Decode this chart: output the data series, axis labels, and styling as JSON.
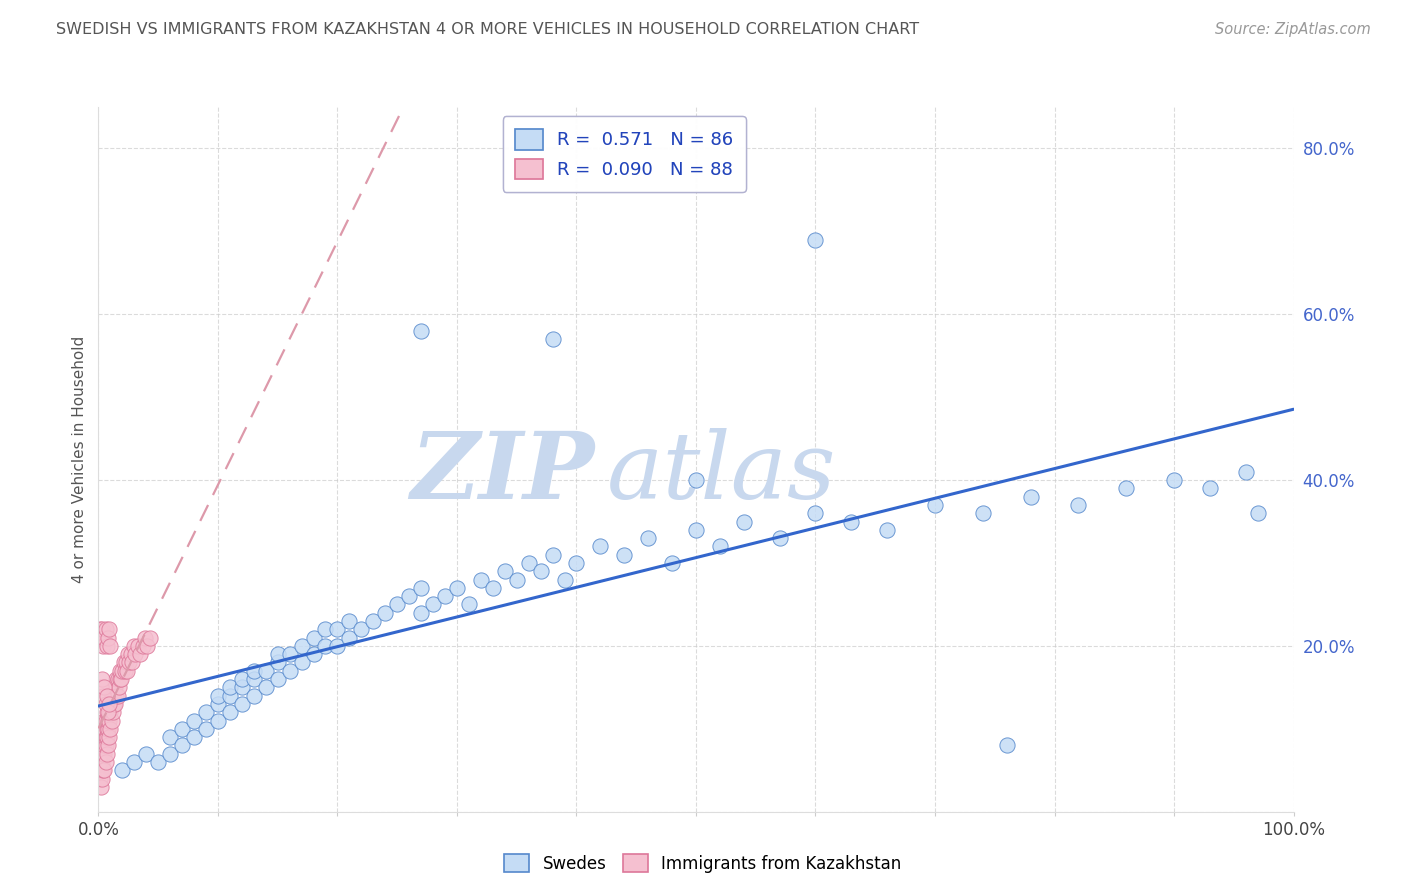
{
  "title": "SWEDISH VS IMMIGRANTS FROM KAZAKHSTAN 4 OR MORE VEHICLES IN HOUSEHOLD CORRELATION CHART",
  "source": "Source: ZipAtlas.com",
  "ylabel": "4 or more Vehicles in Household",
  "watermark_zip": "ZIP",
  "watermark_atlas": "atlas",
  "xlim": [
    0.0,
    1.0
  ],
  "ylim": [
    0.0,
    0.85
  ],
  "xticks": [
    0.0,
    0.1,
    0.2,
    0.3,
    0.4,
    0.5,
    0.6,
    0.7,
    0.8,
    0.9,
    1.0
  ],
  "yticks": [
    0.0,
    0.2,
    0.4,
    0.6,
    0.8
  ],
  "R_swedes": 0.571,
  "N_swedes": 86,
  "R_kaz": 0.09,
  "N_kaz": 88,
  "blue_fill": "#C5DCF5",
  "blue_edge": "#5588CC",
  "pink_fill": "#F5C0D0",
  "pink_edge": "#DD7799",
  "blue_line_color": "#3366CC",
  "pink_line_color": "#DD99AA",
  "title_color": "#555555",
  "source_color": "#999999",
  "legend_value_color": "#2244BB",
  "ylabel_color": "#555555",
  "yticklabel_color": "#4466CC",
  "xticklabel_color": "#444444",
  "background": "#FFFFFF",
  "grid_color": "#CCCCCC",
  "legend_edge_color": "#AAAACC",
  "swedes_x": [
    0.02,
    0.03,
    0.04,
    0.05,
    0.06,
    0.06,
    0.07,
    0.07,
    0.08,
    0.08,
    0.09,
    0.09,
    0.1,
    0.1,
    0.1,
    0.11,
    0.11,
    0.11,
    0.12,
    0.12,
    0.12,
    0.13,
    0.13,
    0.13,
    0.14,
    0.14,
    0.15,
    0.15,
    0.15,
    0.16,
    0.16,
    0.17,
    0.17,
    0.18,
    0.18,
    0.19,
    0.19,
    0.2,
    0.2,
    0.21,
    0.21,
    0.22,
    0.23,
    0.24,
    0.25,
    0.26,
    0.27,
    0.27,
    0.28,
    0.29,
    0.3,
    0.31,
    0.32,
    0.33,
    0.34,
    0.35,
    0.36,
    0.37,
    0.38,
    0.39,
    0.4,
    0.42,
    0.44,
    0.46,
    0.48,
    0.5,
    0.52,
    0.54,
    0.57,
    0.6,
    0.63,
    0.66,
    0.7,
    0.74,
    0.78,
    0.82,
    0.86,
    0.9,
    0.93,
    0.96,
    0.27,
    0.38,
    0.5,
    0.6,
    0.76,
    0.97
  ],
  "swedes_y": [
    0.05,
    0.06,
    0.07,
    0.06,
    0.07,
    0.09,
    0.08,
    0.1,
    0.09,
    0.11,
    0.1,
    0.12,
    0.11,
    0.13,
    0.14,
    0.12,
    0.14,
    0.15,
    0.13,
    0.15,
    0.16,
    0.14,
    0.16,
    0.17,
    0.15,
    0.17,
    0.16,
    0.18,
    0.19,
    0.17,
    0.19,
    0.18,
    0.2,
    0.19,
    0.21,
    0.2,
    0.22,
    0.2,
    0.22,
    0.21,
    0.23,
    0.22,
    0.23,
    0.24,
    0.25,
    0.26,
    0.24,
    0.27,
    0.25,
    0.26,
    0.27,
    0.25,
    0.28,
    0.27,
    0.29,
    0.28,
    0.3,
    0.29,
    0.31,
    0.28,
    0.3,
    0.32,
    0.31,
    0.33,
    0.3,
    0.34,
    0.32,
    0.35,
    0.33,
    0.36,
    0.35,
    0.34,
    0.37,
    0.36,
    0.38,
    0.37,
    0.39,
    0.4,
    0.39,
    0.41,
    0.58,
    0.57,
    0.4,
    0.69,
    0.08,
    0.36
  ],
  "kaz_x": [
    0.001,
    0.001,
    0.002,
    0.002,
    0.002,
    0.003,
    0.003,
    0.003,
    0.003,
    0.004,
    0.004,
    0.004,
    0.004,
    0.005,
    0.005,
    0.005,
    0.005,
    0.005,
    0.006,
    0.006,
    0.006,
    0.006,
    0.007,
    0.007,
    0.007,
    0.007,
    0.008,
    0.008,
    0.008,
    0.008,
    0.009,
    0.009,
    0.009,
    0.01,
    0.01,
    0.01,
    0.011,
    0.011,
    0.011,
    0.012,
    0.012,
    0.013,
    0.013,
    0.014,
    0.014,
    0.015,
    0.015,
    0.016,
    0.016,
    0.017,
    0.018,
    0.018,
    0.019,
    0.02,
    0.021,
    0.022,
    0.023,
    0.024,
    0.025,
    0.026,
    0.027,
    0.028,
    0.03,
    0.031,
    0.033,
    0.035,
    0.037,
    0.039,
    0.041,
    0.043,
    0.001,
    0.002,
    0.003,
    0.004,
    0.005,
    0.006,
    0.007,
    0.008,
    0.009,
    0.01,
    0.002,
    0.003,
    0.004,
    0.005,
    0.006,
    0.007,
    0.008,
    0.009
  ],
  "kaz_y": [
    0.04,
    0.06,
    0.03,
    0.05,
    0.07,
    0.04,
    0.06,
    0.08,
    0.09,
    0.05,
    0.07,
    0.09,
    0.1,
    0.05,
    0.07,
    0.08,
    0.1,
    0.11,
    0.06,
    0.08,
    0.09,
    0.11,
    0.07,
    0.09,
    0.1,
    0.12,
    0.08,
    0.1,
    0.11,
    0.13,
    0.09,
    0.11,
    0.12,
    0.1,
    0.12,
    0.13,
    0.11,
    0.13,
    0.14,
    0.12,
    0.14,
    0.13,
    0.15,
    0.13,
    0.15,
    0.14,
    0.16,
    0.14,
    0.16,
    0.15,
    0.16,
    0.17,
    0.16,
    0.17,
    0.18,
    0.17,
    0.18,
    0.17,
    0.19,
    0.18,
    0.19,
    0.18,
    0.2,
    0.19,
    0.2,
    0.19,
    0.2,
    0.21,
    0.2,
    0.21,
    0.22,
    0.21,
    0.22,
    0.2,
    0.21,
    0.22,
    0.2,
    0.21,
    0.22,
    0.2,
    0.15,
    0.16,
    0.14,
    0.15,
    0.13,
    0.14,
    0.12,
    0.13
  ]
}
